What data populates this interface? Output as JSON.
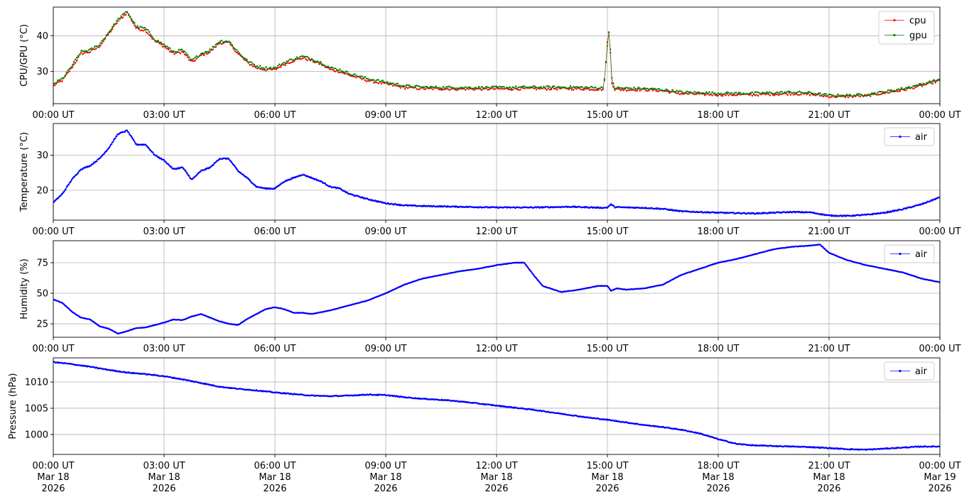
{
  "chart_data": [
    {
      "type": "line",
      "ylabel": "CPU/GPU (°C)",
      "xlabel": "",
      "xlim": [
        "2026-03-18T00:00",
        "2026-03-19T00:00"
      ],
      "ylim": [
        21,
        48
      ],
      "yticks": [
        30,
        40
      ],
      "grid": true,
      "legend": "top-right",
      "x_tick_labels": [
        "00:00 UT",
        "03:00 UT",
        "06:00 UT",
        "09:00 UT",
        "12:00 UT",
        "15:00 UT",
        "18:00 UT",
        "21:00 UT",
        "00:00 UT"
      ],
      "series": [
        {
          "name": "cpu",
          "color": "#ff0000",
          "x_hours": [
            0,
            0.25,
            0.5,
            0.75,
            1.0,
            1.25,
            1.5,
            1.75,
            2.0,
            2.25,
            2.5,
            2.75,
            3.0,
            3.25,
            3.5,
            3.75,
            4.0,
            4.25,
            4.5,
            4.75,
            5.0,
            5.25,
            5.5,
            5.75,
            6.0,
            6.25,
            6.5,
            6.75,
            7.0,
            7.25,
            7.5,
            7.75,
            8.0,
            8.5,
            9.0,
            9.5,
            10.0,
            11.0,
            12.0,
            13.0,
            14.0,
            14.9,
            15.0,
            15.05,
            15.12,
            15.2,
            15.5,
            16.0,
            16.5,
            17.0,
            18.0,
            19.0,
            20.0,
            20.5,
            21.0,
            21.5,
            22.0,
            22.5,
            23.0,
            23.5,
            24.0
          ],
          "values": [
            26,
            27.5,
            31,
            35,
            35.5,
            37,
            40.5,
            44,
            46.5,
            42,
            41.5,
            38.5,
            37,
            35,
            35.5,
            32.5,
            34.5,
            35.5,
            38,
            38,
            35,
            32.5,
            31,
            30.5,
            30.5,
            32,
            33,
            33.8,
            33,
            32,
            30.5,
            30,
            29,
            27.5,
            26.5,
            25.5,
            25.2,
            25.1,
            25.1,
            25.2,
            25.2,
            25.0,
            38.0,
            41.5,
            27.0,
            25.0,
            24.9,
            24.9,
            24.6,
            23.8,
            23.5,
            23.5,
            23.8,
            23.6,
            23.0,
            23.0,
            23.2,
            24.0,
            24.8,
            26.0,
            27.5
          ]
        },
        {
          "name": "gpu",
          "color": "#008000",
          "x_hours": [
            0,
            0.25,
            0.5,
            0.75,
            1.0,
            1.25,
            1.5,
            1.75,
            2.0,
            2.25,
            2.5,
            2.75,
            3.0,
            3.25,
            3.5,
            3.75,
            4.0,
            4.25,
            4.5,
            4.75,
            5.0,
            5.25,
            5.5,
            5.75,
            6.0,
            6.25,
            6.5,
            6.75,
            7.0,
            7.25,
            7.5,
            7.75,
            8.0,
            8.5,
            9.0,
            9.5,
            10.0,
            11.0,
            12.0,
            13.0,
            14.0,
            14.9,
            15.0,
            15.05,
            15.12,
            15.2,
            15.5,
            16.0,
            16.5,
            17.0,
            18.0,
            19.0,
            20.0,
            20.5,
            21.0,
            21.5,
            22.0,
            22.5,
            23.0,
            23.5,
            24.0
          ],
          "values": [
            26.5,
            28,
            31.5,
            35.5,
            36,
            37.5,
            41,
            44.5,
            46.8,
            42.5,
            42,
            39,
            37.5,
            35.5,
            36,
            33,
            35,
            36,
            38.5,
            38.5,
            35.5,
            33,
            31.5,
            31,
            31,
            32.5,
            33.5,
            34.2,
            33.5,
            32.5,
            31,
            30.5,
            29.5,
            28,
            27,
            26,
            25.6,
            25.5,
            25.5,
            25.6,
            25.6,
            25.4,
            37.5,
            41.8,
            28.0,
            25.4,
            25.3,
            25.2,
            24.9,
            24.2,
            23.9,
            23.9,
            24.2,
            24.0,
            23.3,
            23.3,
            23.5,
            24.3,
            25.2,
            26.4,
            27.8
          ]
        }
      ]
    },
    {
      "type": "line",
      "ylabel": "Temperature (°C)",
      "xlabel": "",
      "xlim": [
        "2026-03-18T00:00",
        "2026-03-19T00:00"
      ],
      "ylim": [
        11.5,
        39
      ],
      "yticks": [
        20,
        30
      ],
      "grid": true,
      "legend": "top-right",
      "x_tick_labels": [
        "00:00 UT",
        "03:00 UT",
        "06:00 UT",
        "09:00 UT",
        "12:00 UT",
        "15:00 UT",
        "18:00 UT",
        "21:00 UT",
        "00:00 UT"
      ],
      "series": [
        {
          "name": "air",
          "color": "#0000ff",
          "x_hours": [
            0,
            0.25,
            0.5,
            0.75,
            1.0,
            1.25,
            1.5,
            1.75,
            2.0,
            2.25,
            2.5,
            2.75,
            3.0,
            3.25,
            3.5,
            3.75,
            4.0,
            4.25,
            4.5,
            4.75,
            5.0,
            5.25,
            5.5,
            5.75,
            6.0,
            6.25,
            6.5,
            6.75,
            7.0,
            7.25,
            7.5,
            7.75,
            8.0,
            8.5,
            9.0,
            9.5,
            10.0,
            11.0,
            12.0,
            13.0,
            14.0,
            14.9,
            15.0,
            15.1,
            15.2,
            15.5,
            16.0,
            16.5,
            17.0,
            18.0,
            19.0,
            20.0,
            20.5,
            21.0,
            21.5,
            22.0,
            22.5,
            23.0,
            23.5,
            24.0
          ],
          "values": [
            16.5,
            19,
            23,
            26,
            27,
            29,
            32,
            36,
            37,
            33,
            33,
            30,
            28.5,
            26,
            26.5,
            23,
            25.5,
            26.5,
            29,
            29,
            25.5,
            23.5,
            21,
            20.5,
            20.5,
            22.5,
            23.5,
            24.5,
            23.5,
            22.5,
            21,
            20.5,
            19,
            17.5,
            16.3,
            15.7,
            15.5,
            15.3,
            15.1,
            15.1,
            15.3,
            15.0,
            15.1,
            16.0,
            15.2,
            15.1,
            15.0,
            14.7,
            14.0,
            13.6,
            13.4,
            13.8,
            13.7,
            12.8,
            12.7,
            13.0,
            13.6,
            14.6,
            16.0,
            18.0
          ]
        }
      ]
    },
    {
      "type": "line",
      "ylabel": "Humidity (%)",
      "xlabel": "",
      "xlim": [
        "2026-03-18T00:00",
        "2026-03-19T00:00"
      ],
      "ylim": [
        14,
        93
      ],
      "yticks": [
        25,
        50,
        75
      ],
      "grid": true,
      "legend": "top-right",
      "x_tick_labels": [
        "00:00 UT",
        "03:00 UT",
        "06:00 UT",
        "09:00 UT",
        "12:00 UT",
        "15:00 UT",
        "18:00 UT",
        "21:00 UT",
        "00:00 UT"
      ],
      "series": [
        {
          "name": "air",
          "color": "#0000ff",
          "x_hours": [
            0,
            0.25,
            0.5,
            0.75,
            1.0,
            1.25,
            1.5,
            1.75,
            2.0,
            2.25,
            2.5,
            2.75,
            3.0,
            3.25,
            3.5,
            3.75,
            4.0,
            4.25,
            4.5,
            4.75,
            5.0,
            5.25,
            5.5,
            5.75,
            6.0,
            6.25,
            6.5,
            6.75,
            7.0,
            7.5,
            8.0,
            8.5,
            9.0,
            9.5,
            10.0,
            10.5,
            11.0,
            11.5,
            12.0,
            12.5,
            12.75,
            13.0,
            13.25,
            13.75,
            14.25,
            14.75,
            15.0,
            15.1,
            15.25,
            15.5,
            16.0,
            16.5,
            17.0,
            17.5,
            18.0,
            18.5,
            19.0,
            19.5,
            20.0,
            20.5,
            20.75,
            21.0,
            21.5,
            22.0,
            22.5,
            23.0,
            23.5,
            24.0
          ],
          "values": [
            45,
            42,
            35,
            30,
            28.5,
            23,
            21,
            17,
            19,
            21.5,
            22,
            24,
            26,
            28.5,
            28,
            31,
            33,
            30,
            27,
            25,
            24,
            29,
            33,
            37,
            38.5,
            37,
            34,
            34,
            33,
            36,
            40,
            44,
            50,
            57,
            62,
            65,
            68,
            70,
            73,
            75,
            75,
            65,
            56,
            51,
            53,
            56,
            56,
            52,
            54,
            53,
            54,
            57,
            65,
            70,
            75,
            78,
            82,
            86,
            88,
            89,
            90,
            83,
            77,
            73,
            70,
            67,
            62,
            59
          ]
        }
      ]
    },
    {
      "type": "line",
      "ylabel": "Pressure (hPa)",
      "xlabel": "",
      "xlim": [
        "2026-03-18T00:00",
        "2026-03-19T00:00"
      ],
      "ylim": [
        996.2,
        1014.6
      ],
      "yticks": [
        1000,
        1005,
        1010
      ],
      "grid": true,
      "legend": "top-right",
      "x_tick_labels": [
        [
          "00:00 UT",
          "Mar 18",
          "2026"
        ],
        [
          "03:00 UT",
          "Mar 18",
          "2026"
        ],
        [
          "06:00 UT",
          "Mar 18",
          "2026"
        ],
        [
          "09:00 UT",
          "Mar 18",
          "2026"
        ],
        [
          "12:00 UT",
          "Mar 18",
          "2026"
        ],
        [
          "15:00 UT",
          "Mar 18",
          "2026"
        ],
        [
          "18:00 UT",
          "Mar 18",
          "2026"
        ],
        [
          "21:00 UT",
          "Mar 18",
          "2026"
        ],
        [
          "00:00 UT",
          "Mar 19",
          "2026"
        ]
      ],
      "series": [
        {
          "name": "air",
          "color": "#0000ff",
          "x_hours": [
            0,
            0.5,
            1.0,
            1.5,
            2.0,
            2.5,
            3.0,
            3.5,
            4.0,
            4.5,
            5.0,
            5.5,
            6.0,
            6.5,
            7.0,
            7.5,
            8.0,
            8.5,
            9.0,
            9.5,
            10.0,
            10.5,
            11.0,
            11.5,
            12.0,
            12.5,
            13.0,
            13.5,
            14.0,
            14.5,
            15.0,
            15.5,
            16.0,
            16.5,
            17.0,
            17.5,
            18.0,
            18.5,
            19.0,
            19.5,
            20.0,
            20.5,
            21.0,
            21.5,
            22.0,
            22.5,
            23.0,
            23.5,
            24.0
          ],
          "values": [
            1013.8,
            1013.4,
            1012.9,
            1012.3,
            1011.8,
            1011.5,
            1011.1,
            1010.5,
            1009.8,
            1009.1,
            1008.7,
            1008.4,
            1008.0,
            1007.7,
            1007.4,
            1007.3,
            1007.4,
            1007.6,
            1007.5,
            1007.1,
            1006.8,
            1006.6,
            1006.3,
            1005.9,
            1005.5,
            1005.1,
            1004.7,
            1004.2,
            1003.7,
            1003.2,
            1002.8,
            1002.3,
            1001.8,
            1001.4,
            1000.9,
            1000.2,
            999.1,
            998.2,
            997.9,
            997.8,
            997.7,
            997.6,
            997.4,
            997.2,
            997.1,
            997.3,
            997.5,
            997.7,
            997.7
          ]
        }
      ]
    }
  ]
}
